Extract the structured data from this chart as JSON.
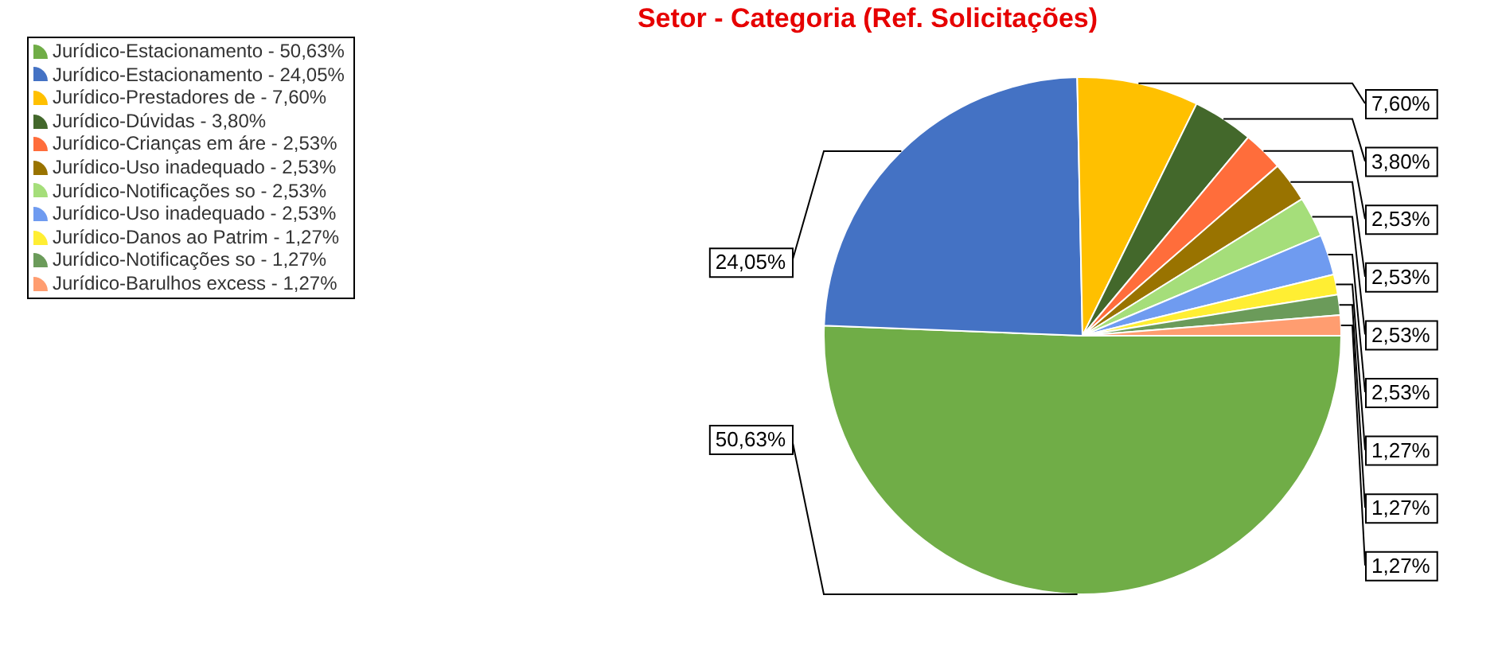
{
  "chart_data": {
    "type": "pie",
    "title": "Setor - Categoria (Ref. Solicitações)",
    "categories": [
      "Jurídico-Estacionamento - 50,63%",
      "Jurídico-Estacionamento - 24,05%",
      "Jurídico-Prestadores de - 7,60%",
      "Jurídico-Dúvidas - 3,80%",
      "Jurídico-Crianças em áre - 2,53%",
      "Jurídico-Uso inadequado - 2,53%",
      "Jurídico-Notificações so - 2,53%",
      "Jurídico-Uso inadequado - 2,53%",
      "Jurídico-Danos ao Patrim - 1,27%",
      "Jurídico-Notificações so - 1,27%",
      "Jurídico-Barulhos excess - 1,27%"
    ],
    "values": [
      50.63,
      24.05,
      7.6,
      3.8,
      2.53,
      2.53,
      2.53,
      2.53,
      1.27,
      1.27,
      1.27
    ],
    "value_labels": [
      "50,63%",
      "24,05%",
      "7,60%",
      "3,80%",
      "2,53%",
      "2,53%",
      "2,53%",
      "2,53%",
      "1,27%",
      "1,27%",
      "1,27%"
    ],
    "colors": [
      "#70ad47",
      "#4472c4",
      "#ffc000",
      "#43682b",
      "#ff6d3b",
      "#997300",
      "#a5de7a",
      "#6f9bf0",
      "#ffee33",
      "#6b9b5a",
      "#ff9d70"
    ],
    "legend": "top left"
  }
}
